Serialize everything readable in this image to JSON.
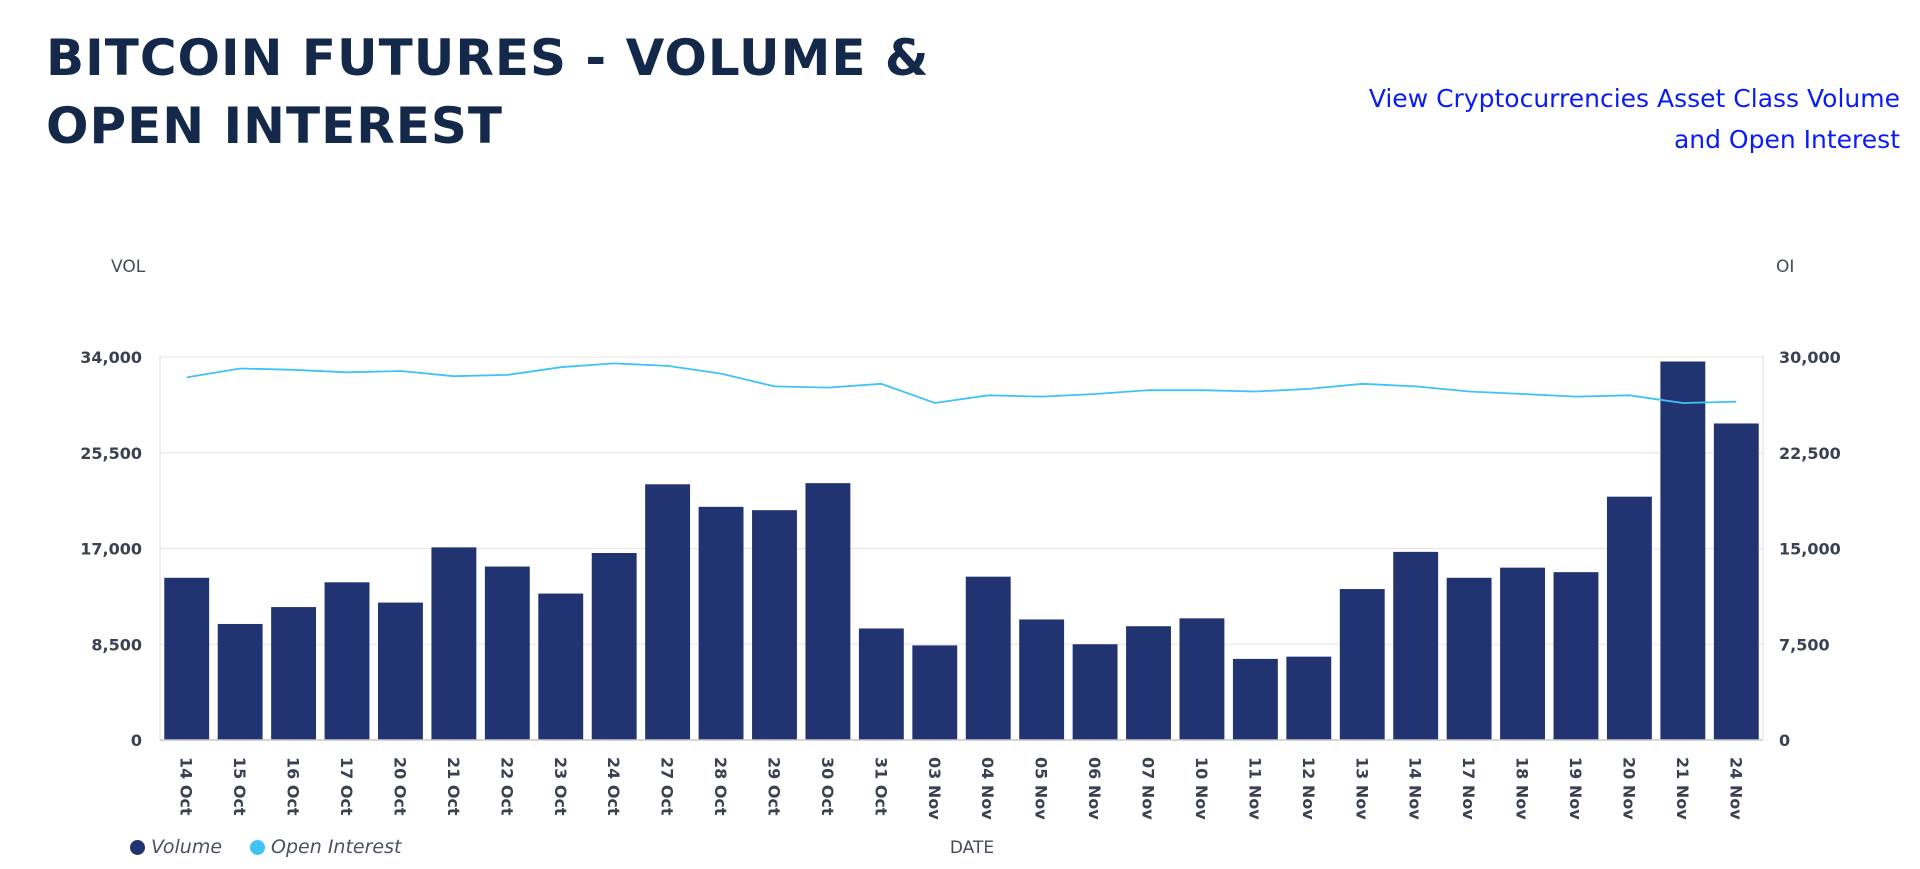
{
  "header": {
    "title": "BITCOIN FUTURES - VOLUME & OPEN INTEREST",
    "link_line1": "View Cryptocurrencies Asset Class Volume",
    "link_line2": "and Open Interest"
  },
  "colors": {
    "volume": "#213371",
    "open_interest": "#3fc3f5",
    "title": "#14294a",
    "link": "#0a1cf5",
    "grid": "#e6e6e6"
  },
  "legend": {
    "volume": "Volume",
    "open_interest": "Open Interest"
  },
  "chart_data": {
    "type": "bar",
    "xlabel": "DATE",
    "ylabel_left": "VOL",
    "ylabel_right": "OI",
    "ylim_left": [
      0,
      34000
    ],
    "ylim_right": [
      0,
      30000
    ],
    "yticks_left": [
      "0",
      "8,500",
      "17,000",
      "25,500",
      "34,000"
    ],
    "yticks_right": [
      "0",
      "7,500",
      "15,000",
      "22,500",
      "30,000"
    ],
    "grid": true,
    "legend_position": "bottom-left",
    "categories": [
      "14 Oct",
      "15 Oct",
      "16 Oct",
      "17 Oct",
      "20 Oct",
      "21 Oct",
      "22 Oct",
      "23 Oct",
      "24 Oct",
      "27 Oct",
      "28 Oct",
      "29 Oct",
      "30 Oct",
      "31 Oct",
      "03 Nov",
      "04 Nov",
      "05 Nov",
      "06 Nov",
      "07 Nov",
      "10 Nov",
      "11 Nov",
      "12 Nov",
      "13 Nov",
      "14 Nov",
      "17 Nov",
      "18 Nov",
      "19 Nov",
      "20 Nov",
      "21 Nov",
      "24 Nov"
    ],
    "series": [
      {
        "name": "Volume",
        "type": "bar",
        "axis": "left",
        "values": [
          14400,
          10300,
          11800,
          14000,
          12200,
          17100,
          15400,
          13000,
          16600,
          22700,
          20700,
          20400,
          22800,
          9900,
          8400,
          14500,
          10700,
          8500,
          10100,
          10800,
          7200,
          7400,
          13400,
          16700,
          14400,
          15300,
          14900,
          21600,
          33600,
          28100
        ]
      },
      {
        "name": "Open Interest",
        "type": "line",
        "axis": "right",
        "values": [
          28400,
          29100,
          29000,
          28800,
          28900,
          28500,
          28600,
          29200,
          29500,
          29300,
          28700,
          27700,
          27600,
          27900,
          26400,
          27000,
          26900,
          27100,
          27400,
          27400,
          27300,
          27500,
          27900,
          27700,
          27300,
          27100,
          26900,
          27000,
          26400,
          26500
        ]
      }
    ]
  }
}
